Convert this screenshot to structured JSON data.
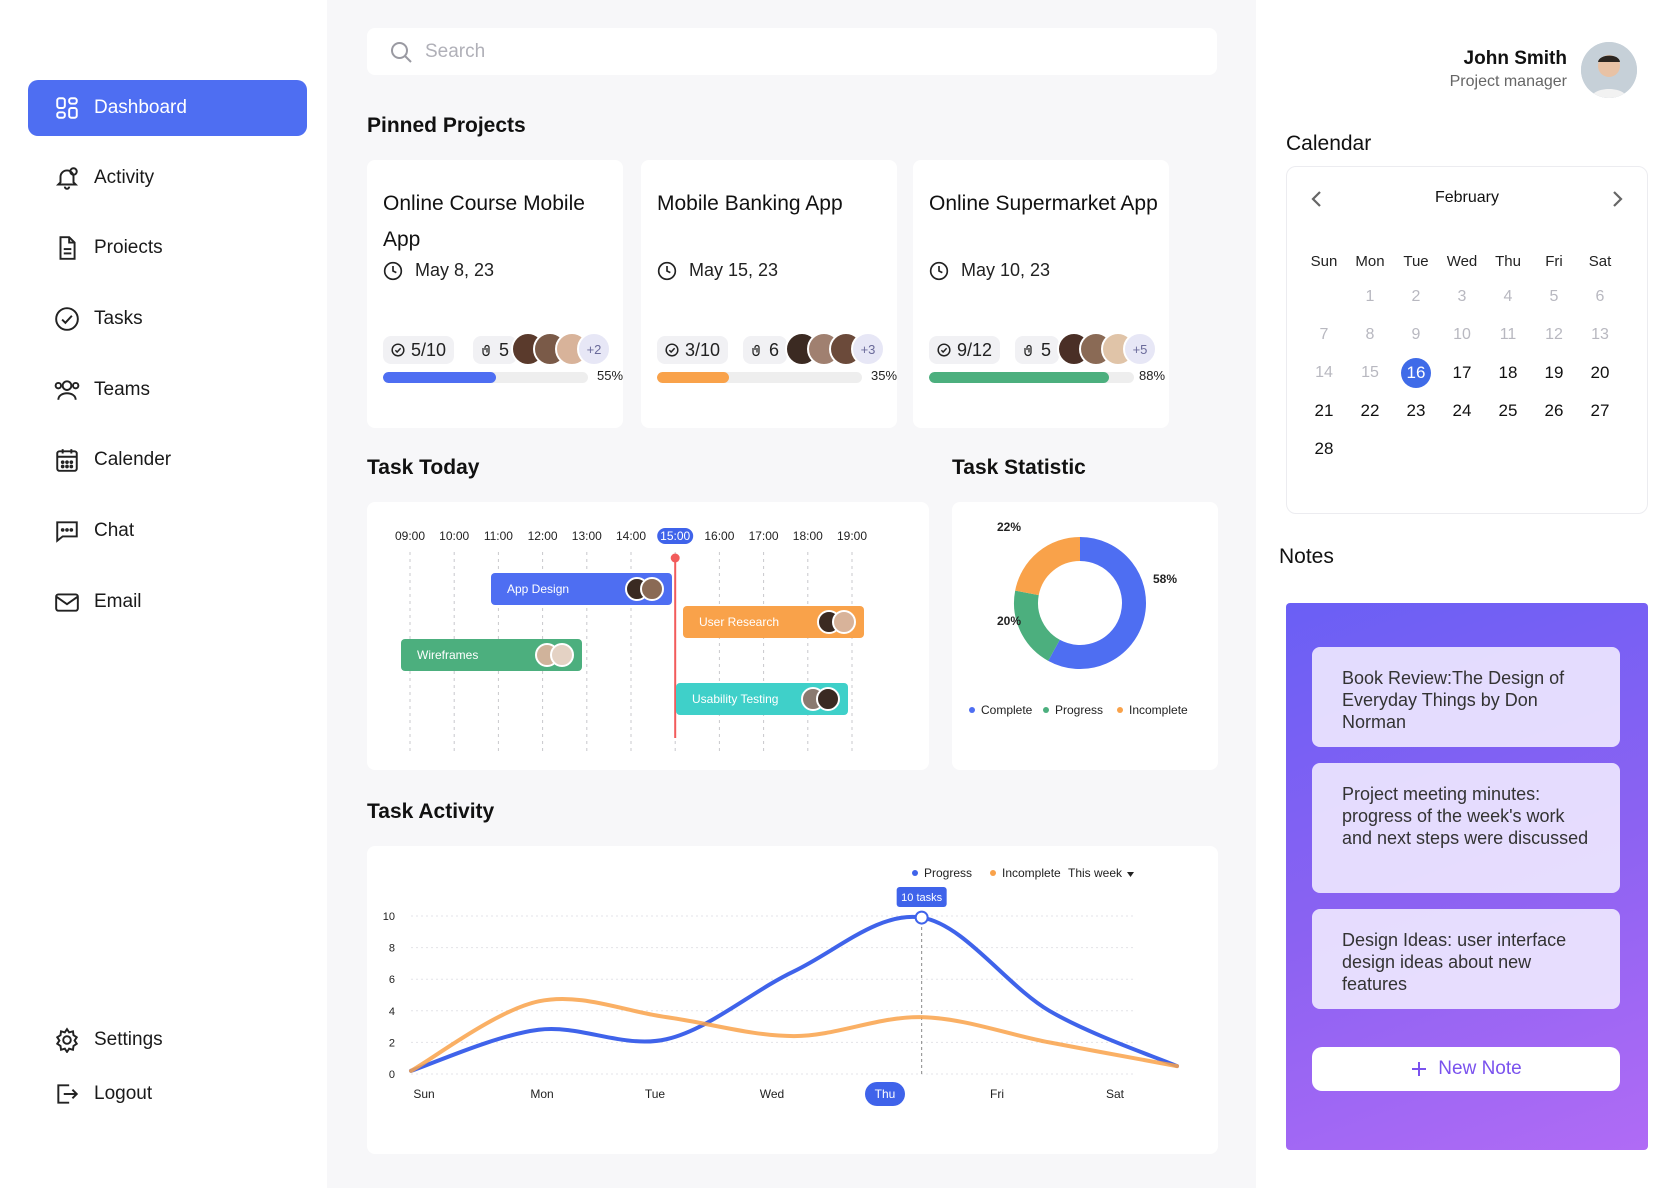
{
  "sidebar": {
    "items": [
      {
        "label": "Dashboard",
        "icon": "dashboard-icon",
        "active": true
      },
      {
        "label": "Activity",
        "icon": "bell-icon"
      },
      {
        "label": "Proiects",
        "icon": "document-icon"
      },
      {
        "label": "Tasks",
        "icon": "check-circle-icon"
      },
      {
        "label": "Teams",
        "icon": "team-icon"
      },
      {
        "label": "Calender",
        "icon": "calendar-icon"
      },
      {
        "label": "Chat",
        "icon": "chat-icon"
      },
      {
        "label": "Email",
        "icon": "mail-icon"
      }
    ],
    "bottom": [
      {
        "label": "Settings",
        "icon": "gear-icon"
      },
      {
        "label": "Logout",
        "icon": "logout-icon"
      }
    ],
    "accent": "#4e6ef2"
  },
  "search": {
    "placeholder": "Search"
  },
  "pinned": {
    "title": "Pinned Projects",
    "projects": [
      {
        "title": "Online Course Mobile App",
        "date": "May 8, 23",
        "tasks": "5/10",
        "files": "5",
        "more": "+2",
        "percent_label": "55%",
        "progress": 0.55,
        "color": "#4e6ef2"
      },
      {
        "title": "Mobile Banking  App",
        "date": "May 15, 23",
        "tasks": "3/10",
        "files": "6",
        "more": "+3",
        "percent_label": "35%",
        "progress": 0.35,
        "color": "#f9a24a"
      },
      {
        "title": "Online Supermarket App",
        "date": "May 10, 23",
        "tasks": "9/12",
        "files": "5",
        "more": "+5",
        "percent_label": "88%",
        "progress": 0.88,
        "color": "#4caf7e"
      }
    ]
  },
  "task_today": {
    "title": "Task Today",
    "hours": [
      "09:00",
      "10:00",
      "11:00",
      "12:00",
      "13:00",
      "14:00",
      "15:00",
      "16:00",
      "17:00",
      "18:00",
      "19:00"
    ],
    "current_hour": "15:00",
    "tasks": [
      {
        "label": "App Design",
        "color": "#4e6ef2"
      },
      {
        "label": "User Research",
        "color": "#f9a24a"
      },
      {
        "label": "Wireframes",
        "color": "#4caf7e"
      },
      {
        "label": "Usability Testing",
        "color": "#3fd0c9"
      }
    ]
  },
  "task_statistic": {
    "title": "Task Statistic",
    "chart_data": {
      "type": "pie",
      "slices": [
        {
          "name": "Complete",
          "value": 58,
          "label": "58%",
          "color": "#4e6ef2"
        },
        {
          "name": "Progress",
          "value": 20,
          "label": "20%",
          "color": "#4caf7e"
        },
        {
          "name": "Incomplete",
          "value": 22,
          "label": "22%",
          "color": "#f9a24a"
        }
      ]
    }
  },
  "task_activity": {
    "title": "Task Activity",
    "period": "This week",
    "tooltip": "10 tasks",
    "chart_data": {
      "type": "line",
      "categories": [
        "Sun",
        "Mon",
        "Tue",
        "Wed",
        "Thu",
        "Fri",
        "Sat"
      ],
      "highlight": "Thu",
      "yticks": [
        "0",
        "2",
        "4",
        "6",
        "8",
        "10"
      ],
      "ylim": [
        0,
        10
      ],
      "series": [
        {
          "name": "Progress",
          "color": "#3f63ea",
          "values": [
            0.2,
            2.8,
            2.2,
            6.5,
            9.9,
            4.0,
            0.5
          ]
        },
        {
          "name": "Incomplete",
          "color": "#f9a24a",
          "values": [
            0.2,
            4.6,
            3.6,
            2.4,
            3.6,
            2.0,
            0.5
          ]
        }
      ]
    }
  },
  "user": {
    "name": "John Smith",
    "role": "Project manager"
  },
  "calendar": {
    "title": "Calendar",
    "month": "February",
    "weekdays": [
      "Sun",
      "Mon",
      "Tue",
      "Wed",
      "Thu",
      "Fri",
      "Sat"
    ],
    "weeks": [
      [
        "",
        "1",
        "2",
        "3",
        "4",
        "5",
        "6"
      ],
      [
        "7",
        "8",
        "9",
        "10",
        "11",
        "12",
        "13"
      ],
      [
        "14",
        "15",
        "16",
        "17",
        "18",
        "19",
        "20"
      ],
      [
        "21",
        "22",
        "23",
        "24",
        "25",
        "26",
        "27"
      ],
      [
        "28",
        "",
        "",
        "",
        "",
        "",
        ""
      ]
    ],
    "selected": "16"
  },
  "notes": {
    "title": "Notes",
    "items": [
      "Book Review:The Design of Everyday Things by Don Norman",
      "Project meeting minutes: progress of the week's work and next steps were discussed",
      "Design Ideas: user interface design ideas about new features"
    ],
    "new_label": "New Note"
  }
}
